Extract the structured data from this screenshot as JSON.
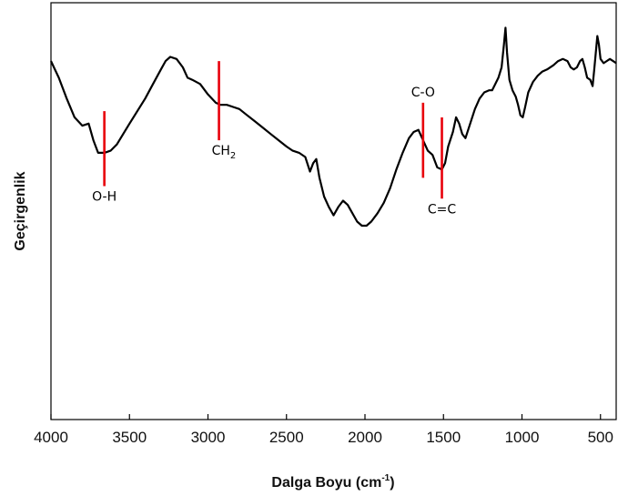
{
  "chart_data": {
    "type": "line",
    "xlabel": "Dalga Boyu (cm",
    "xlabel_sup": "-1",
    "xlabel_close": ")",
    "ylabel": "Geçirgenlik",
    "xlim": [
      4000,
      400
    ],
    "ylim": [
      0,
      100
    ],
    "x_reversed": true,
    "grid": false,
    "yticks_shown": false,
    "xticks": [
      4000,
      3500,
      3000,
      2500,
      2000,
      1500,
      1000,
      500
    ],
    "xtick_labels": [
      "4000",
      "3500",
      "3000",
      "2500",
      "2000",
      "1500",
      "1000",
      "500"
    ],
    "series": [
      {
        "color": "#000000",
        "points": [
          [
            4000,
            86
          ],
          [
            3950,
            82
          ],
          [
            3900,
            77
          ],
          [
            3850,
            72.5
          ],
          [
            3800,
            70.5
          ],
          [
            3760,
            71
          ],
          [
            3730,
            67
          ],
          [
            3700,
            64
          ],
          [
            3660,
            64
          ],
          [
            3620,
            64.5
          ],
          [
            3580,
            66
          ],
          [
            3540,
            68.5
          ],
          [
            3500,
            71
          ],
          [
            3450,
            74
          ],
          [
            3400,
            77
          ],
          [
            3350,
            80.5
          ],
          [
            3300,
            84
          ],
          [
            3270,
            86
          ],
          [
            3240,
            87
          ],
          [
            3200,
            86.5
          ],
          [
            3160,
            84.5
          ],
          [
            3130,
            82
          ],
          [
            3100,
            81.5
          ],
          [
            3050,
            80.5
          ],
          [
            3000,
            78
          ],
          [
            2950,
            76
          ],
          [
            2920,
            75.5
          ],
          [
            2880,
            75.5
          ],
          [
            2840,
            75
          ],
          [
            2800,
            74.5
          ],
          [
            2750,
            73
          ],
          [
            2700,
            71.5
          ],
          [
            2650,
            70
          ],
          [
            2600,
            68.5
          ],
          [
            2550,
            67
          ],
          [
            2500,
            65.5
          ],
          [
            2460,
            64.5
          ],
          [
            2420,
            64
          ],
          [
            2380,
            63
          ],
          [
            2350,
            59.5
          ],
          [
            2330,
            61.5
          ],
          [
            2310,
            62.5
          ],
          [
            2290,
            58
          ],
          [
            2260,
            53.5
          ],
          [
            2230,
            51
          ],
          [
            2200,
            49
          ],
          [
            2170,
            51
          ],
          [
            2140,
            52.5
          ],
          [
            2110,
            51.5
          ],
          [
            2080,
            49.5
          ],
          [
            2050,
            47.5
          ],
          [
            2020,
            46.5
          ],
          [
            1990,
            46.5
          ],
          [
            1960,
            47.5
          ],
          [
            1920,
            49.5
          ],
          [
            1880,
            52
          ],
          [
            1840,
            55.5
          ],
          [
            1800,
            60
          ],
          [
            1760,
            64
          ],
          [
            1720,
            67.5
          ],
          [
            1690,
            69
          ],
          [
            1660,
            69.5
          ],
          [
            1630,
            67
          ],
          [
            1600,
            64.5
          ],
          [
            1570,
            63.5
          ],
          [
            1540,
            60.5
          ],
          [
            1510,
            60
          ],
          [
            1490,
            61.5
          ],
          [
            1470,
            65.5
          ],
          [
            1440,
            69
          ],
          [
            1420,
            72.5
          ],
          [
            1400,
            71
          ],
          [
            1380,
            68.5
          ],
          [
            1360,
            67.5
          ],
          [
            1330,
            71
          ],
          [
            1300,
            74.5
          ],
          [
            1270,
            77
          ],
          [
            1240,
            78.5
          ],
          [
            1210,
            79
          ],
          [
            1190,
            79
          ],
          [
            1170,
            80.5
          ],
          [
            1150,
            82
          ],
          [
            1130,
            84.5
          ],
          [
            1115,
            90
          ],
          [
            1105,
            94
          ],
          [
            1095,
            88
          ],
          [
            1080,
            81.5
          ],
          [
            1060,
            79
          ],
          [
            1040,
            77.5
          ],
          [
            1025,
            75.5
          ],
          [
            1010,
            73
          ],
          [
            995,
            72.5
          ],
          [
            980,
            75
          ],
          [
            960,
            78.5
          ],
          [
            930,
            81
          ],
          [
            900,
            82.5
          ],
          [
            870,
            83.5
          ],
          [
            840,
            84
          ],
          [
            800,
            85
          ],
          [
            770,
            86
          ],
          [
            740,
            86.5
          ],
          [
            710,
            86
          ],
          [
            690,
            84.5
          ],
          [
            670,
            84
          ],
          [
            650,
            84.5
          ],
          [
            630,
            86
          ],
          [
            615,
            86.5
          ],
          [
            600,
            84.5
          ],
          [
            585,
            82
          ],
          [
            565,
            81.5
          ],
          [
            550,
            80
          ],
          [
            540,
            84
          ],
          [
            530,
            88
          ],
          [
            520,
            92
          ],
          [
            510,
            90
          ],
          [
            500,
            86.5
          ],
          [
            480,
            85.5
          ],
          [
            460,
            86
          ],
          [
            440,
            86.5
          ],
          [
            420,
            86
          ],
          [
            400,
            85.5
          ]
        ]
      }
    ],
    "annotations": [
      {
        "label": "O-H",
        "sub": "",
        "x": 3660,
        "y_top": 74,
        "y_bottom": 56,
        "label_y": 52.5,
        "anchor": "middle",
        "dx": 0
      },
      {
        "label": "CH",
        "sub": "2",
        "x": 2930,
        "y_top": 86,
        "y_bottom": 67,
        "label_y": 63.5,
        "anchor": "start",
        "dx": -8
      },
      {
        "label": "C-O",
        "sub": "",
        "x": 1630,
        "y_top": 76,
        "y_bottom": 58,
        "label_y": 77.5,
        "anchor": "middle",
        "dx": 0
      },
      {
        "label": "C=C",
        "sub": "",
        "x": 1510,
        "y_top": 72.5,
        "y_bottom": 53,
        "label_y": 49.5,
        "anchor": "middle",
        "dx": 0
      }
    ],
    "annotation_color": "#e8000b"
  }
}
